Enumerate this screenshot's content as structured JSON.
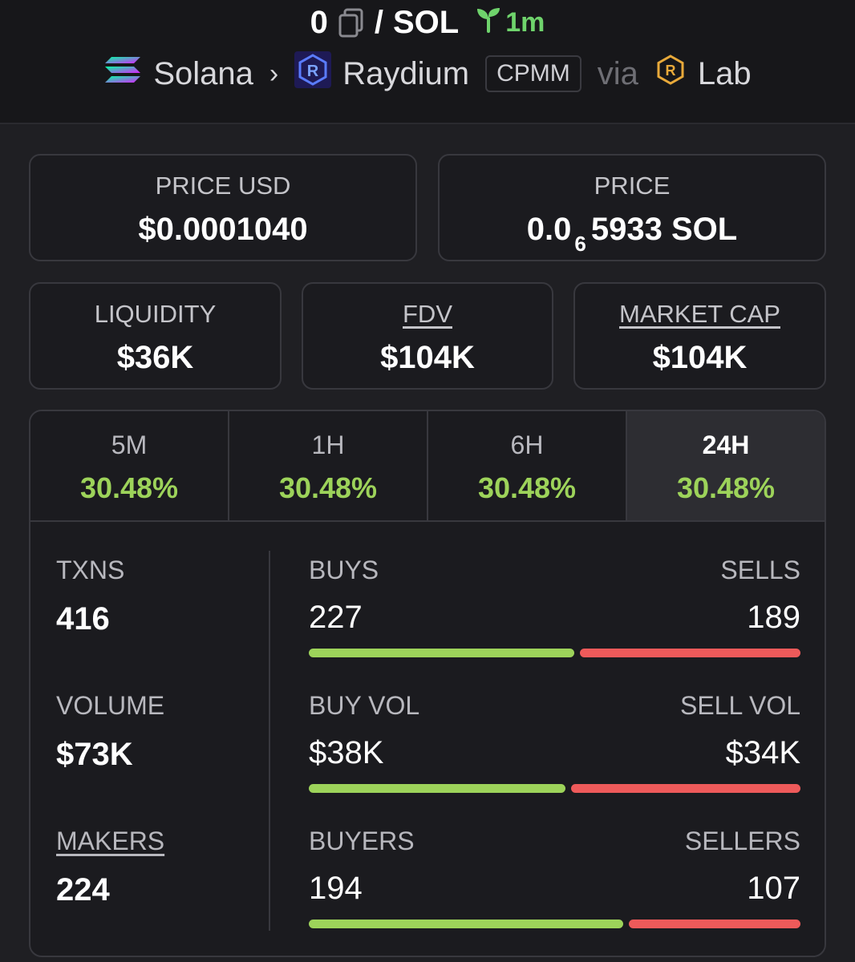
{
  "header": {
    "token_symbol": "0",
    "separator": "/",
    "quote_symbol": "SOL",
    "age": "1m",
    "chain": "Solana",
    "dex": "Raydium",
    "pool_type": "CPMM",
    "via_label": "via",
    "launchpad": "Lab"
  },
  "price_usd": {
    "label": "PRICE USD",
    "value": "$0.0001040"
  },
  "price": {
    "label": "PRICE",
    "prefix": "0.0",
    "zeros": "6",
    "digits": "5933 SOL"
  },
  "liquidity": {
    "label": "LIQUIDITY",
    "value": "$36K"
  },
  "fdv": {
    "label": "FDV",
    "value": "$104K"
  },
  "market_cap": {
    "label": "MARKET CAP",
    "value": "$104K"
  },
  "tabs": [
    {
      "label": "5M",
      "value": "30.48%"
    },
    {
      "label": "1H",
      "value": "30.48%"
    },
    {
      "label": "6H",
      "value": "30.48%"
    },
    {
      "label": "24H",
      "value": "30.48%",
      "active": true
    }
  ],
  "stats": {
    "txns": {
      "label": "TXNS",
      "value": "416"
    },
    "volume": {
      "label": "VOLUME",
      "value": "$73K"
    },
    "makers": {
      "label": "MAKERS",
      "value": "224"
    },
    "buys": {
      "label": "BUYS",
      "value": "227"
    },
    "sells": {
      "label": "SELLS",
      "value": "189"
    },
    "buy_vol": {
      "label": "BUY VOL",
      "value": "$38K"
    },
    "sell_vol": {
      "label": "SELL VOL",
      "value": "$34K"
    },
    "buyers": {
      "label": "BUYERS",
      "value": "194"
    },
    "sellers": {
      "label": "SELLERS",
      "value": "107"
    }
  },
  "ratios": {
    "txns_buy_fraction": 0.546,
    "volume_buy_fraction": 0.528,
    "makers_buy_fraction": 0.645
  },
  "colors": {
    "positive": "#9dd35a",
    "negative": "#ee5a5a",
    "age": "#6fd36c",
    "background": "#1f1f23"
  }
}
